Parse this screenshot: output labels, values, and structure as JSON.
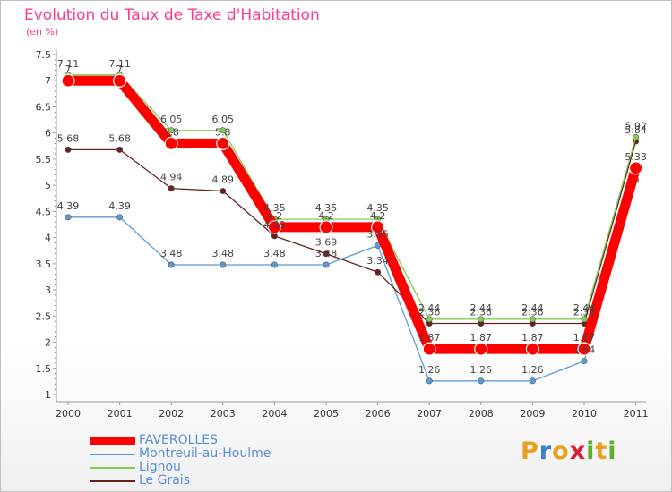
{
  "title": "Evolution du Taux de Taxe d'Habitation",
  "unit": "(en %)",
  "brand": {
    "letters": [
      {
        "ch": "P",
        "color": "#e8a020"
      },
      {
        "ch": "r",
        "color": "#3a7ec8"
      },
      {
        "ch": "o",
        "color": "#e8a020"
      },
      {
        "ch": "x",
        "color": "#d81f3a"
      },
      {
        "ch": "i",
        "color": "#5fb030"
      },
      {
        "ch": "t",
        "color": "#e8a020"
      },
      {
        "ch": "i",
        "color": "#5fb030"
      }
    ]
  },
  "chart_data": {
    "type": "line",
    "title": "Evolution du Taux de Taxe d'Habitation",
    "ylabel": "(en %)",
    "xlabel": "",
    "ylim": [
      1,
      7.5
    ],
    "y_ticks": [
      "1",
      "1.5",
      "2",
      "2.5",
      "3",
      "3.5",
      "4",
      "4.5",
      "5",
      "5.5",
      "6",
      "6.5",
      "7",
      "7.5"
    ],
    "categories": [
      "2000",
      "2001",
      "2002",
      "2003",
      "2004",
      "2005",
      "2006",
      "2007",
      "2008",
      "2009",
      "2010",
      "2011"
    ],
    "grid": "none",
    "legend_position": "bottom-left",
    "series": [
      {
        "name": "FAVEROLLES",
        "color": "#ff0000",
        "values": [
          7,
          7,
          5.8,
          5.8,
          4.2,
          4.2,
          4.2,
          1.87,
          1.87,
          1.87,
          1.87,
          5.33
        ],
        "labels": [
          "7",
          "7",
          "5.8",
          "5.8",
          "4.2",
          "4.2",
          "4.2",
          "1.87",
          "1.87",
          "1.87",
          "1.87",
          "5.33"
        ]
      },
      {
        "name": "Montreuil-au-Houlme",
        "color": "#5b9bd5",
        "values": [
          4.39,
          4.39,
          3.48,
          3.48,
          3.48,
          3.48,
          3.85,
          1.26,
          1.26,
          1.26,
          1.64,
          5.1
        ],
        "labels": [
          "4.39",
          "4.39",
          "3.48",
          "3.48",
          "3.48",
          "3.48",
          "3.85",
          "1.26",
          "1.26",
          "1.26",
          "1.64",
          ""
        ]
      },
      {
        "name": "Lignou",
        "color": "#7fcf50",
        "values": [
          7.11,
          7.11,
          6.05,
          6.05,
          4.35,
          4.35,
          4.35,
          2.44,
          2.44,
          2.44,
          2.44,
          5.92
        ],
        "labels": [
          "7.11",
          "7.11",
          "6.05",
          "6.05",
          "4.35",
          "4.35",
          "4.35",
          "2.44",
          "2.44",
          "2.44",
          "2.44",
          "5.92"
        ]
      },
      {
        "name": "Le Grais",
        "color": "#6b2020",
        "values": [
          5.68,
          5.68,
          4.94,
          4.89,
          4.03,
          3.69,
          3.34,
          2.36,
          2.36,
          2.36,
          2.36,
          5.84
        ],
        "labels": [
          "5.68",
          "5.68",
          "4.94",
          "4.89",
          "4.03",
          "3.69",
          "3.34",
          "2.36",
          "2.36",
          "2.36",
          "2.36",
          "5.84"
        ]
      }
    ]
  }
}
